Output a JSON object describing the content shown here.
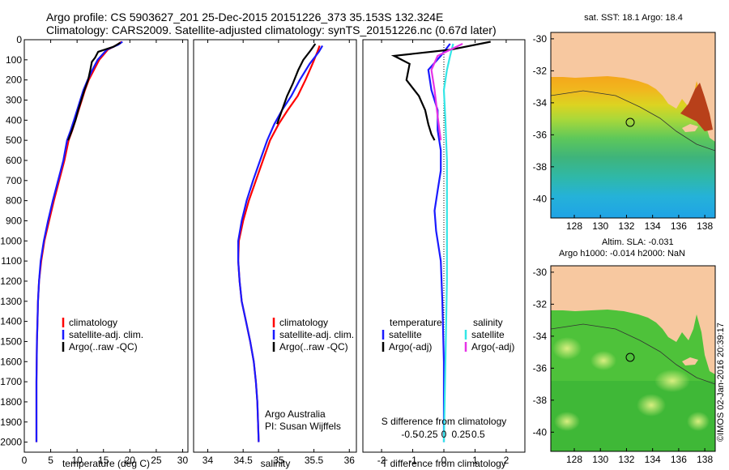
{
  "header": {
    "line1": "Argo profile: CS 5903627_201 25-Dec-2015 20151226_373 35.153S 132.324E",
    "line2": "Climatology: CARS2009. Satellite-adjusted climatology: synTS_20151226.nc (0.67d later)"
  },
  "colors": {
    "climatology": "#ff0000",
    "satellite": "#1a1aff",
    "argo": "#000000",
    "sal_satellite": "#33e6e6",
    "sal_argo": "#e633e6",
    "land": "#f7c8a0"
  },
  "chart_data": [
    {
      "type": "line",
      "panel": "temperature",
      "xlabel": "temperature (deg C)",
      "xlim": [
        0,
        31
      ],
      "xticks": [
        0,
        5,
        10,
        15,
        20,
        25,
        30
      ],
      "ylim": [
        2050,
        0
      ],
      "yticks": [
        0,
        100,
        200,
        300,
        400,
        500,
        600,
        700,
        800,
        900,
        1000,
        1100,
        1200,
        1300,
        1400,
        1500,
        1600,
        1700,
        1800,
        1900,
        2000
      ],
      "legend": [
        "climatology",
        "satellite-adj. clim.",
        "Argo(..raw -QC)"
      ],
      "series": [
        {
          "name": "climatology",
          "color": "#ff0000",
          "x": [
            18.4,
            17.6,
            15.8,
            14.2,
            13.2,
            12.2,
            11.5,
            10.9,
            10.3,
            9.7,
            9.1,
            8.4,
            7.6,
            6.6,
            5.6,
            4.7,
            3.8,
            3.2,
            2.8,
            2.6,
            2.5,
            2.4,
            2.3,
            2.3,
            2.3
          ],
          "y": [
            10,
            25,
            50,
            100,
            150,
            200,
            250,
            300,
            350,
            400,
            450,
            500,
            600,
            700,
            800,
            900,
            1000,
            1100,
            1200,
            1300,
            1400,
            1500,
            1700,
            1900,
            2000
          ]
        },
        {
          "name": "satellite-adj. clim.",
          "color": "#1a1aff",
          "x": [
            18.6,
            17.8,
            15.6,
            13.9,
            12.9,
            12.0,
            11.2,
            10.6,
            10.0,
            9.4,
            8.8,
            8.1,
            7.4,
            6.4,
            5.4,
            4.5,
            3.7,
            3.1,
            2.8,
            2.6,
            2.5,
            2.4,
            2.3,
            2.3,
            2.3
          ],
          "y": [
            10,
            25,
            50,
            100,
            150,
            200,
            250,
            300,
            350,
            400,
            450,
            500,
            600,
            700,
            800,
            900,
            1000,
            1100,
            1200,
            1300,
            1400,
            1500,
            1700,
            1900,
            2000
          ]
        },
        {
          "name": "Argo(..raw -QC)",
          "color": "#000000",
          "x": [
            18.2,
            16.9,
            14.0,
            13.4,
            12.8,
            12.5,
            12.1,
            11.4,
            10.8,
            10.2,
            9.7,
            9.3,
            8.9,
            8.3
          ],
          "y": [
            15,
            35,
            60,
            90,
            110,
            150,
            200,
            250,
            300,
            350,
            400,
            430,
            460,
            500
          ]
        }
      ]
    },
    {
      "type": "line",
      "panel": "salinity",
      "xlabel": "salinity",
      "xlim": [
        33.8,
        36.1
      ],
      "xticks": [
        34,
        34.5,
        35,
        35.5,
        36
      ],
      "ylim": [
        2050,
        0
      ],
      "legend": [
        "climatology",
        "satellite-adj. clim.",
        "Argo(..raw -QC)"
      ],
      "annotations": [
        "Argo Australia",
        "PI: Susan Wijffels"
      ],
      "series": [
        {
          "name": "climatology",
          "color": "#ff0000",
          "x": [
            35.58,
            35.55,
            35.48,
            35.38,
            35.27,
            35.13,
            35.0,
            34.88,
            34.78,
            34.68,
            34.58,
            34.5,
            34.44,
            34.43,
            34.45,
            34.48,
            34.54,
            34.6,
            34.65,
            34.68,
            34.7,
            34.72
          ],
          "y": [
            30,
            60,
            120,
            200,
            280,
            350,
            420,
            500,
            600,
            700,
            800,
            900,
            1000,
            1100,
            1200,
            1300,
            1400,
            1500,
            1600,
            1700,
            1800,
            2000
          ]
        },
        {
          "name": "satellite-adj. clim.",
          "color": "#1a1aff",
          "x": [
            35.62,
            35.57,
            35.44,
            35.3,
            35.18,
            35.05,
            34.94,
            34.84,
            34.74,
            34.64,
            34.55,
            34.48,
            34.43,
            34.43,
            34.45,
            34.48,
            34.54,
            34.6,
            34.65,
            34.68,
            34.7,
            34.72
          ],
          "y": [
            30,
            60,
            120,
            200,
            280,
            350,
            420,
            500,
            600,
            700,
            800,
            900,
            1000,
            1100,
            1200,
            1300,
            1400,
            1500,
            1600,
            1700,
            1800,
            2000
          ]
        },
        {
          "name": "Argo(..raw -QC)",
          "color": "#000000",
          "x": [
            35.52,
            35.46,
            35.35,
            35.28,
            35.2,
            35.12,
            35.05,
            34.98
          ],
          "y": [
            20,
            50,
            100,
            150,
            220,
            280,
            350,
            420
          ]
        }
      ]
    },
    {
      "type": "line",
      "panel": "difference",
      "xlabel": "T difference from climatology",
      "xlabel_top": "S difference from climatology",
      "xlim": [
        -2.6,
        2.6
      ],
      "xticks": [
        -2,
        -1,
        0,
        1,
        2
      ],
      "xticks_s_labels": [
        "-0.5",
        "-0.25",
        "0",
        "0.25",
        "0.5"
      ],
      "xticks_s_pos": [
        -2,
        -1,
        0,
        1,
        2
      ],
      "ylim": [
        2050,
        0
      ],
      "legend": {
        "temperature": [
          "satellite",
          "Argo(-adj)"
        ],
        "salinity": [
          "satellite",
          "Argo(-adj)"
        ]
      },
      "legend_titles": [
        "temperature",
        "salinity"
      ],
      "series": [
        {
          "name": "satellite",
          "color": "#1a1aff",
          "x": [
            0.2,
            -0.1,
            -0.5,
            -0.4,
            -0.2,
            -0.2,
            -0.1,
            -0.1,
            -0.2,
            -0.3,
            -0.25,
            -0.1,
            -0.05,
            0.0,
            0.0
          ],
          "y": [
            20,
            80,
            150,
            250,
            350,
            450,
            550,
            650,
            750,
            850,
            950,
            1100,
            1300,
            1600,
            2000
          ]
        },
        {
          "name": "Argo(-adj)",
          "color": "#000000",
          "x": [
            1.5,
            0.2,
            -1.6,
            -1.1,
            -1.2,
            -0.8,
            -0.6,
            -0.5,
            -0.4,
            -0.3
          ],
          "y": [
            10,
            50,
            80,
            120,
            200,
            280,
            350,
            420,
            470,
            500
          ]
        },
        {
          "name": "satellite",
          "color": "#33e6e6",
          "x": [
            0.3,
            0.2,
            0.1,
            0.0,
            0.05,
            0.1,
            0.1,
            0.1,
            0.05,
            0.0
          ],
          "y": [
            20,
            80,
            150,
            250,
            400,
            600,
            900,
            1200,
            1600,
            2000
          ]
        },
        {
          "name": "Argo(-adj)",
          "color": "#e633e6",
          "x": [
            0.6,
            -0.2,
            -0.4,
            -0.3,
            -0.2,
            -0.1
          ],
          "y": [
            20,
            80,
            150,
            250,
            380,
            500
          ]
        }
      ]
    },
    {
      "type": "heatmap",
      "panel": "sst-map",
      "title": "sat. SST: 18.1  Argo: 18.4",
      "xticks": [
        128,
        130,
        132,
        134,
        136,
        138
      ],
      "yticks": [
        -30,
        -32,
        -34,
        -36,
        -38,
        -40
      ],
      "xlim": [
        126.2,
        138.8
      ],
      "ylim": [
        -41.2,
        -29.6
      ],
      "marker": {
        "lon": 132.324,
        "lat": -35.153
      }
    },
    {
      "type": "heatmap",
      "panel": "sla-map",
      "title": "Altim. SLA: -0.031",
      "subtitle": "Argo h1000: -0.014  h2000: NaN",
      "xticks": [
        128,
        130,
        132,
        134,
        136,
        138
      ],
      "yticks": [
        -30,
        -32,
        -34,
        -36,
        -38,
        -40
      ],
      "xlim": [
        126.2,
        138.8
      ],
      "ylim": [
        -41.2,
        -29.6
      ],
      "marker": {
        "lon": 132.324,
        "lat": -35.153
      }
    }
  ],
  "credit": "©IMOS 02-Jan-2016 20:39:17"
}
